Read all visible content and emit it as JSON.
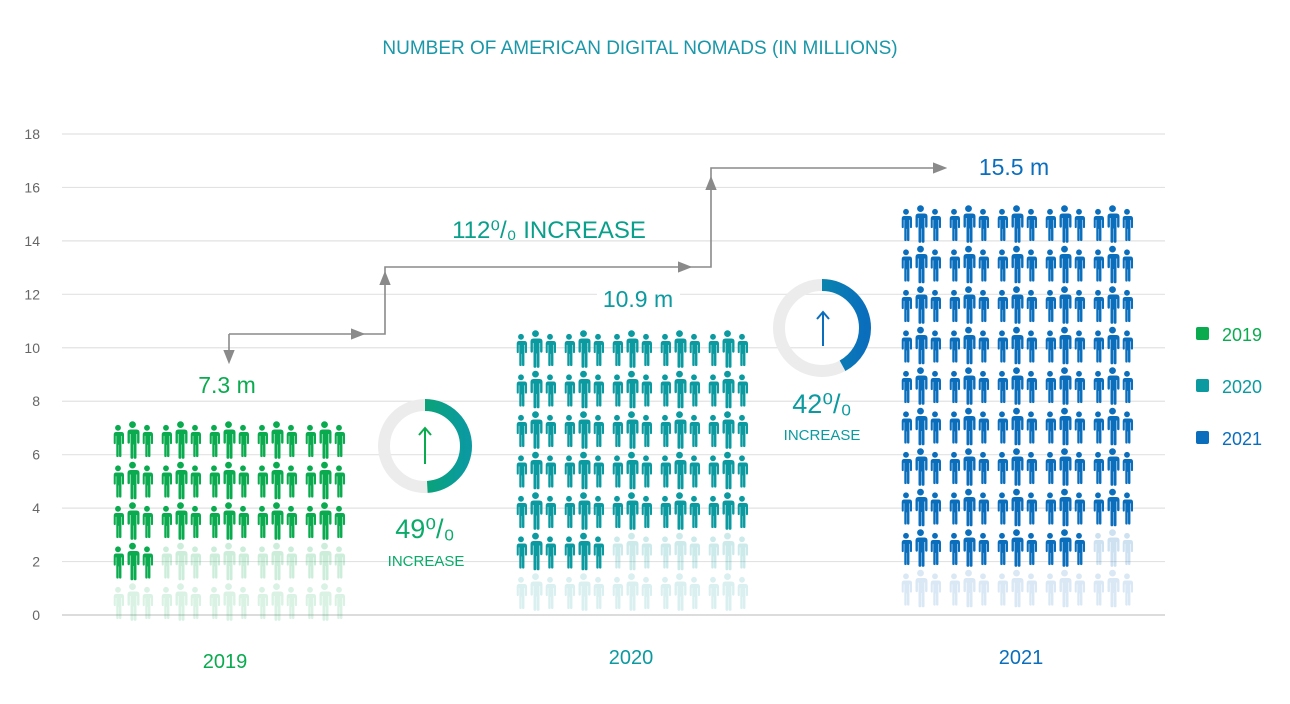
{
  "chart_data": {
    "type": "bar",
    "style": "pictograph",
    "title": "NUMBER OF AMERICAN DIGITAL NOMADS (IN MILLIONS)",
    "categories": [
      "2019",
      "2020",
      "2021"
    ],
    "values": [
      7.3,
      10.9,
      15.5
    ],
    "value_labels": [
      "7.3 m",
      "10.9 m",
      "15.5 m"
    ],
    "ylim": [
      0,
      18
    ],
    "yticks": [
      0,
      2,
      4,
      6,
      8,
      10,
      12,
      14,
      16,
      18
    ],
    "grid": true,
    "legend": {
      "placement": "right",
      "entries": [
        "2019",
        "2020",
        "2021"
      ]
    },
    "colors": {
      "2019": "#0aab4f",
      "2020": "#0a9a9f",
      "2021": "#0a6ebd",
      "title": "#1a97a8",
      "arrow": "#8a8a8a",
      "grid": "#e2e2e2"
    },
    "annotations": {
      "increase_2019_2020": {
        "value": "49%",
        "display": "49⁰/₀",
        "label": "INCREASE",
        "fraction": 0.49,
        "icon": "up-arrow-icon"
      },
      "increase_2020_2021": {
        "value": "42%",
        "display": "42⁰/₀",
        "label": "INCREASE",
        "fraction": 0.42,
        "icon": "up-arrow-icon"
      },
      "increase_2019_2021": {
        "value": "112%",
        "display": "112⁰/₀ INCREASE"
      }
    }
  }
}
